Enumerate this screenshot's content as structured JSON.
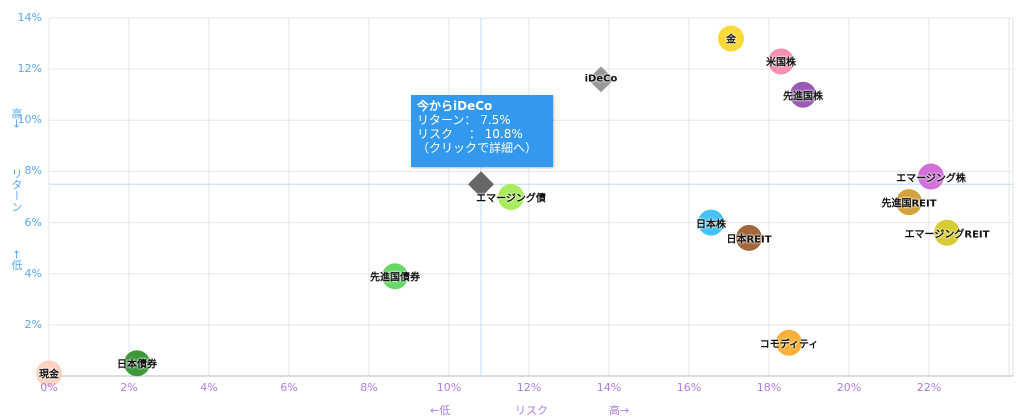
{
  "chart_data": {
    "type": "scatter",
    "title": "",
    "xlabel": "←低　　　　リスク　　　　高→",
    "ylabel": "←低　　リターン　　高→",
    "x_axis": {
      "label_parts": [
        "←低",
        "リスク",
        "高→"
      ],
      "ticks": [
        "0%",
        "2%",
        "4%",
        "6%",
        "8%",
        "10%",
        "12%",
        "14%",
        "16%",
        "18%",
        "20%",
        "22%"
      ],
      "range": [
        0,
        24.1
      ],
      "unit": "%"
    },
    "y_axis": {
      "label_parts": [
        "←低",
        "リターン",
        "高→"
      ],
      "ticks": [
        "2%",
        "4%",
        "6%",
        "8%",
        "10%",
        "12%",
        "14%"
      ],
      "range": [
        0,
        14
      ],
      "unit": "%"
    },
    "grid": true,
    "legend": "none",
    "crosshair": {
      "x": 10.8,
      "y": 7.5
    },
    "points": [
      {
        "name": "現金",
        "risk": 0.0,
        "return": 0.1,
        "color": "#ffd2c2",
        "shape": "circle"
      },
      {
        "name": "日本債券",
        "risk": 2.2,
        "return": 0.5,
        "color": "#3a9a3a",
        "shape": "circle"
      },
      {
        "name": "先進国債券",
        "risk": 8.65,
        "return": 3.9,
        "color": "#66d866",
        "shape": "circle"
      },
      {
        "name": "エマージング債",
        "risk": 11.55,
        "return": 7.0,
        "color": "#a9ec5c",
        "shape": "circle"
      },
      {
        "name": "今からiDeCo",
        "risk": 10.8,
        "return": 7.5,
        "color": "#666666",
        "shape": "diamond",
        "label": ""
      },
      {
        "name": "iDeCo",
        "risk": 13.8,
        "return": 11.6,
        "color": "#999999",
        "shape": "diamond"
      },
      {
        "name": "金",
        "risk": 17.05,
        "return": 13.2,
        "color": "#fcd93a",
        "shape": "circle"
      },
      {
        "name": "米国株",
        "risk": 18.3,
        "return": 12.3,
        "color": "#f78fb3",
        "shape": "circle"
      },
      {
        "name": "先進国株",
        "risk": 18.85,
        "return": 11.0,
        "color": "#9b59b6",
        "shape": "circle"
      },
      {
        "name": "日本株",
        "risk": 16.55,
        "return": 6.0,
        "color": "#44c2f7",
        "shape": "circle"
      },
      {
        "name": "日本REIT",
        "risk": 17.5,
        "return": 5.4,
        "color": "#a0683c",
        "shape": "circle"
      },
      {
        "name": "コモディティ",
        "risk": 18.5,
        "return": 1.3,
        "color": "#fbb03b",
        "shape": "circle"
      },
      {
        "name": "エマージング株",
        "risk": 22.05,
        "return": 7.8,
        "color": "#d070d8",
        "shape": "circle"
      },
      {
        "name": "先進国REIT",
        "risk": 21.5,
        "return": 6.8,
        "color": "#d4a23c",
        "shape": "circle"
      },
      {
        "name": "エマージングREIT",
        "risk": 22.45,
        "return": 5.6,
        "color": "#d8cc34",
        "shape": "circle"
      }
    ]
  },
  "tooltip": {
    "title": "今からiDeCo",
    "line1": "リターン：  7.5%",
    "line2": "リスク　 ：  10.8%",
    "line3": "（クリックで詳細へ）"
  },
  "colors": {
    "y_axis_text": "#5aa7f0",
    "x_axis_text": "#b07ce8",
    "grid": "#e6e6e6",
    "crosshair": "#bcdcf7",
    "tooltip_bg": "#3399ee"
  }
}
